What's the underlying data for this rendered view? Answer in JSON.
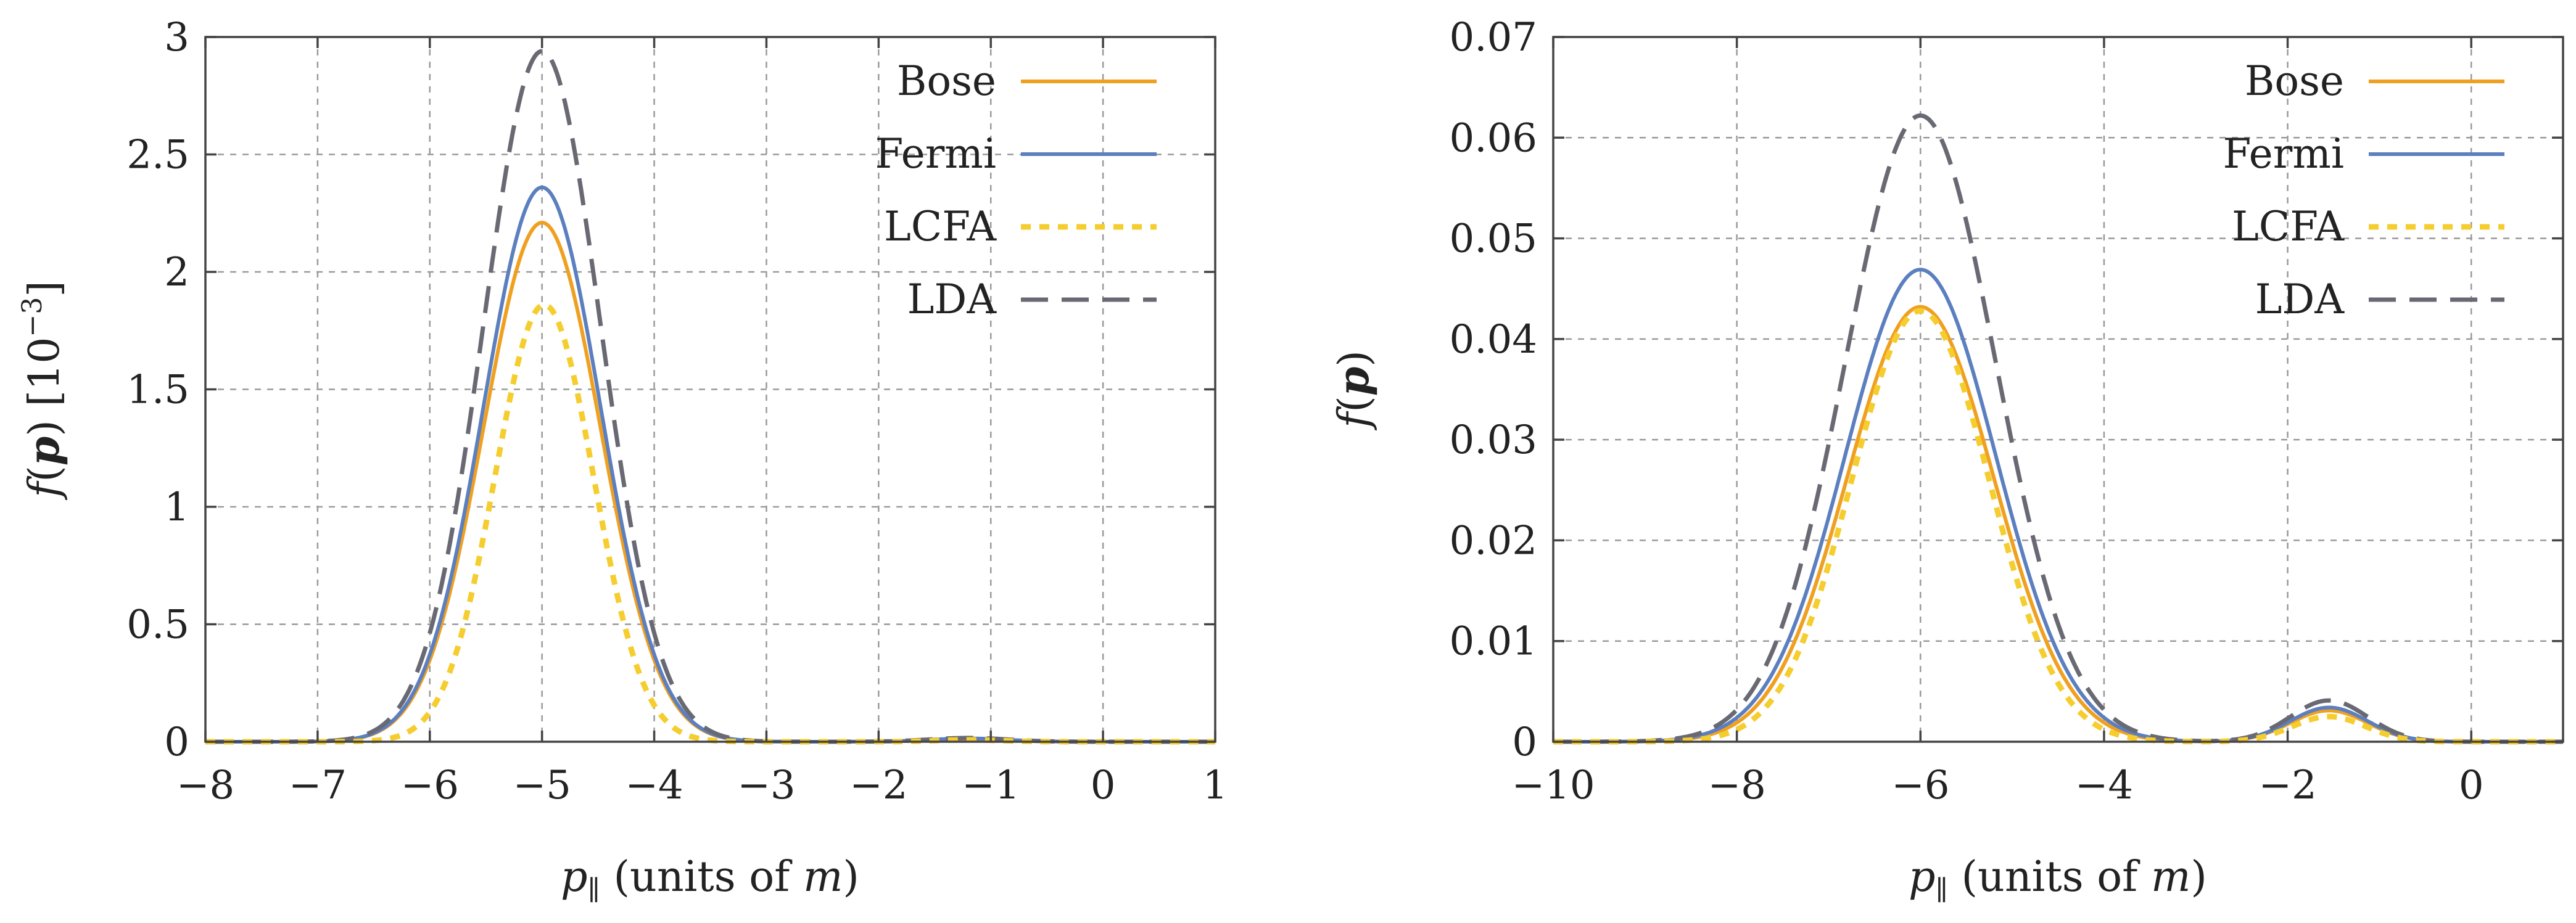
{
  "chart_data": [
    {
      "type": "line",
      "xlabel_sym": "p",
      "xlabel_sub": "∥",
      "xlabel_rest": " (units of ",
      "xlabel_m": "m",
      "xlabel_close": ")",
      "ylabel_f": "f",
      "ylabel_p": "p",
      "ylabel_unit_base": " [10",
      "ylabel_unit_exp": "−3",
      "ylabel_unit_close": "]",
      "xlim": [
        -8,
        1
      ],
      "ylim": [
        0,
        3
      ],
      "xticks": [
        -8,
        -7,
        -6,
        -5,
        -4,
        -3,
        -2,
        -1,
        0,
        1
      ],
      "xtick_labels": [
        "−8",
        "−7",
        "−6",
        "−5",
        "−4",
        "−3",
        "−2",
        "−1",
        "0",
        "1"
      ],
      "yticks": [
        0,
        0.5,
        1,
        1.5,
        2,
        2.5,
        3
      ],
      "ytick_labels": [
        "0",
        "0.5",
        "1",
        "1.5",
        "2",
        "2.5",
        "3"
      ],
      "legend_position": "top-right",
      "series": [
        {
          "name": "Bose",
          "color": "#f0a020",
          "dash": "solid",
          "peaks": [
            {
              "center": -5.0,
              "amp": 2.21,
              "width": 0.52
            },
            {
              "center": -1.2,
              "amp": 0.012,
              "width": 0.35
            }
          ]
        },
        {
          "name": "Fermi",
          "color": "#5b7fbf",
          "dash": "solid",
          "peaks": [
            {
              "center": -5.0,
              "amp": 2.36,
              "width": 0.52
            },
            {
              "center": -1.2,
              "amp": 0.014,
              "width": 0.35
            }
          ]
        },
        {
          "name": "LCFA",
          "color": "#f5cd2e",
          "dash": "dotted",
          "peaks": [
            {
              "center": -4.98,
              "amp": 1.86,
              "width": 0.44
            },
            {
              "center": -1.2,
              "amp": 0.008,
              "width": 0.3
            }
          ]
        },
        {
          "name": "LDA",
          "color": "#696973",
          "dash": "dashed",
          "peaks": [
            {
              "center": -5.0,
              "amp": 2.94,
              "width": 0.52
            },
            {
              "center": -1.2,
              "amp": 0.016,
              "width": 0.35
            }
          ]
        }
      ]
    },
    {
      "type": "line",
      "xlabel_sym": "p",
      "xlabel_sub": "∥",
      "xlabel_rest": " (units of ",
      "xlabel_m": "m",
      "xlabel_close": ")",
      "ylabel_f": "f",
      "ylabel_p": "p",
      "xlim": [
        -10,
        1
      ],
      "ylim": [
        0,
        0.07
      ],
      "xticks": [
        -10,
        -8,
        -6,
        -4,
        -2,
        0
      ],
      "xtick_labels": [
        "−10",
        "−8",
        "−6",
        "−4",
        "−2",
        "0"
      ],
      "yticks": [
        0,
        0.01,
        0.02,
        0.03,
        0.04,
        0.05,
        0.06,
        0.07
      ],
      "ytick_labels": [
        "0",
        "0.01",
        "0.02",
        "0.03",
        "0.04",
        "0.05",
        "0.06",
        "0.07"
      ],
      "legend_position": "top-right",
      "series": [
        {
          "name": "Bose",
          "color": "#f0a020",
          "dash": "solid",
          "peaks": [
            {
              "center": -6.0,
              "amp": 0.0432,
              "width": 0.8
            },
            {
              "center": -1.55,
              "amp": 0.0031,
              "width": 0.42
            }
          ]
        },
        {
          "name": "Fermi",
          "color": "#5b7fbf",
          "dash": "solid",
          "peaks": [
            {
              "center": -6.0,
              "amp": 0.0469,
              "width": 0.82
            },
            {
              "center": -1.55,
              "amp": 0.0034,
              "width": 0.42
            }
          ]
        },
        {
          "name": "LCFA",
          "color": "#f5cd2e",
          "dash": "dotted",
          "peaks": [
            {
              "center": -6.0,
              "amp": 0.0428,
              "width": 0.75
            },
            {
              "center": -1.55,
              "amp": 0.0025,
              "width": 0.4
            }
          ]
        },
        {
          "name": "LDA",
          "color": "#696973",
          "dash": "dashed",
          "peaks": [
            {
              "center": -6.0,
              "amp": 0.0622,
              "width": 0.82
            },
            {
              "center": -1.55,
              "amp": 0.0041,
              "width": 0.42
            }
          ]
        }
      ]
    }
  ]
}
